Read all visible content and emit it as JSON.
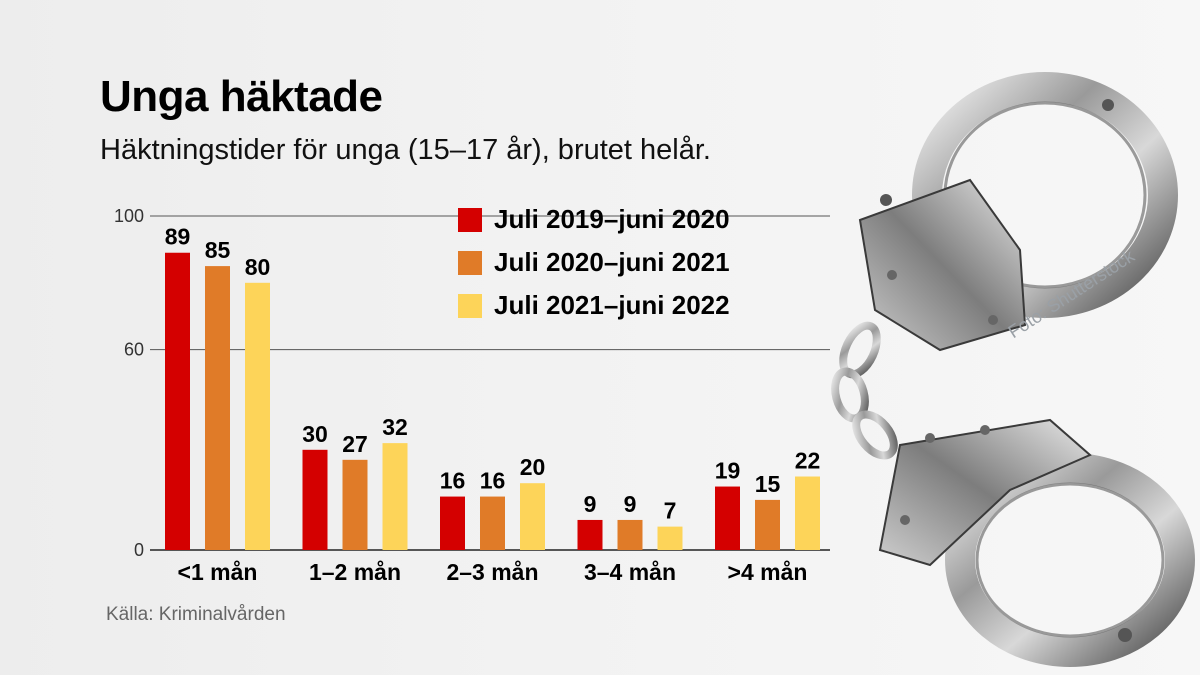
{
  "header": {
    "title": "Unga häktade",
    "subtitle": "Häktningstider för unga (15–17 år), brutet helår."
  },
  "footer": {
    "source": "Källa: Kriminalvården",
    "photo_credit": "Foto: Shutterstock"
  },
  "colors": {
    "series_2019_2020": "#d40000",
    "series_2020_2021": "#e07b28",
    "series_2021_2022": "#fdd459",
    "gridline": "#555555",
    "text": "#000000"
  },
  "image": {
    "name": "handcuffs-photo"
  },
  "chart_data": {
    "type": "bar",
    "title": "Unga häktade",
    "subtitle": "Häktningstider för unga (15–17 år), brutet helår.",
    "categories": [
      "<1 mån",
      "1–2 mån",
      "2–3 mån",
      "3–4 mån",
      ">4 mån"
    ],
    "series": [
      {
        "name": "Juli 2019–juni 2020",
        "color": "#d40000",
        "values": [
          89,
          30,
          16,
          9,
          19
        ]
      },
      {
        "name": "Juli 2020–juni 2021",
        "color": "#e07b28",
        "values": [
          85,
          27,
          16,
          9,
          15
        ]
      },
      {
        "name": "Juli 2021–juni 2022",
        "color": "#fdd459",
        "values": [
          80,
          32,
          20,
          7,
          22
        ]
      }
    ],
    "yticks": [
      0,
      60,
      100
    ],
    "ylim": [
      0,
      100
    ],
    "xlabel": "",
    "ylabel": "",
    "grid": true,
    "legend_position": "top-right",
    "data_labels": true
  }
}
